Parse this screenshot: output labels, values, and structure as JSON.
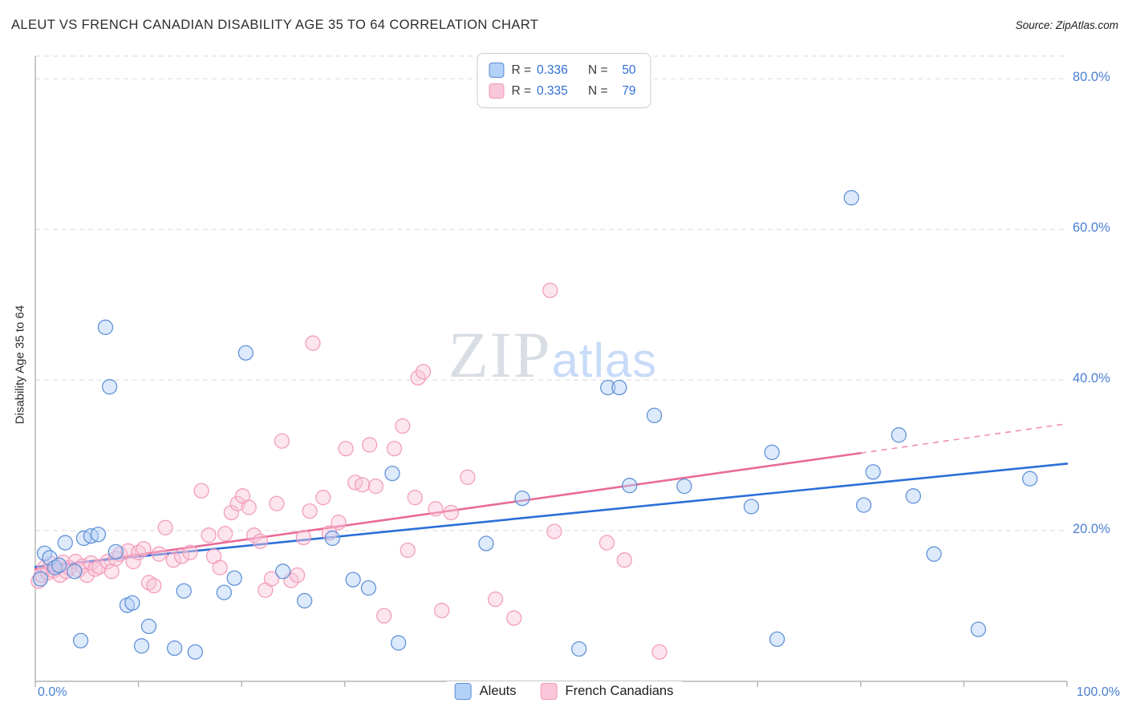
{
  "header": {
    "title": "ALEUT VS FRENCH CANADIAN DISABILITY AGE 35 TO 64 CORRELATION CHART",
    "source": "Source: ZipAtlas.com"
  },
  "watermark": {
    "zip": "ZIP",
    "atlas": "atlas"
  },
  "legend_box": {
    "rows": [
      {
        "r_label": "R =",
        "r_value": "0.336",
        "n_label": "N =",
        "n_value": "50"
      },
      {
        "r_label": "R =",
        "r_value": "0.335",
        "n_label": "N =",
        "n_value": "79"
      }
    ]
  },
  "axes": {
    "y_label": "Disability Age 35 to 64",
    "y_ticks": [
      "80.0%",
      "60.0%",
      "40.0%",
      "20.0%"
    ],
    "x_start": "0.0%",
    "x_end": "100.0%",
    "tick_color": "#4a7fd1"
  },
  "bottom_legend": [
    {
      "label": "Aleuts"
    },
    {
      "label": "French Canadians"
    }
  ],
  "colors": {
    "accent_blue": "#2f6fd4",
    "gridline": "#d9d9d9",
    "axis": "#b3b3b3"
  },
  "chart_data": {
    "type": "scatter",
    "title": "ALEUT VS FRENCH CANADIAN DISABILITY AGE 35 TO 64 CORRELATION CHART",
    "xlabel": "",
    "ylabel": "Disability Age 35 to 64",
    "xlim": [
      0,
      100
    ],
    "ylim": [
      0,
      83
    ],
    "grid_y_values": [
      20,
      40,
      60,
      80
    ],
    "x_tick_step": 10,
    "legend_position": "bottom-center",
    "series": [
      {
        "name": "Aleuts",
        "r": 0.336,
        "n": 50,
        "fill": "#b3d1f7",
        "stroke": "#5b8dd6",
        "trend": {
          "x_start": 0,
          "y_start": 15.2,
          "x_end": 100,
          "y_end": 28.9,
          "color": "#2b6fd9",
          "dashed_extension": null
        },
        "points": [
          [
            0.5,
            13.6
          ],
          [
            0.9,
            17.0
          ],
          [
            1.4,
            16.4
          ],
          [
            1.9,
            15.1
          ],
          [
            2.3,
            15.4
          ],
          [
            2.9,
            18.4
          ],
          [
            3.8,
            14.6
          ],
          [
            4.4,
            5.4
          ],
          [
            4.7,
            19.0
          ],
          [
            5.4,
            19.3
          ],
          [
            6.1,
            19.5
          ],
          [
            6.8,
            47.0
          ],
          [
            7.2,
            39.1
          ],
          [
            7.8,
            17.2
          ],
          [
            8.9,
            10.1
          ],
          [
            9.4,
            10.4
          ],
          [
            10.3,
            4.7
          ],
          [
            11.0,
            7.3
          ],
          [
            13.5,
            4.4
          ],
          [
            14.4,
            12.0
          ],
          [
            15.5,
            3.9
          ],
          [
            18.3,
            11.8
          ],
          [
            19.3,
            13.7
          ],
          [
            20.4,
            43.6
          ],
          [
            24.0,
            14.6
          ],
          [
            26.1,
            10.7
          ],
          [
            28.8,
            19.0
          ],
          [
            30.8,
            13.5
          ],
          [
            32.3,
            12.4
          ],
          [
            34.6,
            27.6
          ],
          [
            35.2,
            5.1
          ],
          [
            43.7,
            18.3
          ],
          [
            47.2,
            24.3
          ],
          [
            52.7,
            4.3
          ],
          [
            55.5,
            39.0
          ],
          [
            56.6,
            39.0
          ],
          [
            57.6,
            26.0
          ],
          [
            60.0,
            35.3
          ],
          [
            62.9,
            25.9
          ],
          [
            69.4,
            23.2
          ],
          [
            71.4,
            30.4
          ],
          [
            71.9,
            5.6
          ],
          [
            79.1,
            64.2
          ],
          [
            80.3,
            23.4
          ],
          [
            81.2,
            27.8
          ],
          [
            83.7,
            32.7
          ],
          [
            85.1,
            24.6
          ],
          [
            87.1,
            16.9
          ],
          [
            91.4,
            6.9
          ],
          [
            96.4,
            26.9
          ]
        ]
      },
      {
        "name": "French Canadians",
        "r": 0.335,
        "n": 79,
        "fill": "#f9c6da",
        "stroke": "#f29ab8",
        "trend": {
          "x_start": 0,
          "y_start": 14.9,
          "x_end": 80,
          "y_end": 30.3,
          "color": "#e96b97",
          "dashed_extension": {
            "x_end": 100,
            "y_end": 34.2
          }
        },
        "points": [
          [
            0.3,
            13.3
          ],
          [
            0.6,
            14.1
          ],
          [
            0.9,
            15.1
          ],
          [
            1.2,
            14.4
          ],
          [
            1.5,
            15.6
          ],
          [
            1.8,
            14.7
          ],
          [
            2.1,
            15.2
          ],
          [
            2.4,
            14.1
          ],
          [
            2.7,
            15.8
          ],
          [
            3.0,
            14.6
          ],
          [
            3.3,
            15.1
          ],
          [
            60.5,
            3.9
          ],
          [
            3.9,
            15.9
          ],
          [
            4.2,
            14.8
          ],
          [
            4.6,
            15.3
          ],
          [
            5.0,
            14.1
          ],
          [
            5.4,
            15.7
          ],
          [
            5.8,
            14.9
          ],
          [
            6.2,
            15.2
          ],
          [
            57.1,
            16.1
          ],
          [
            7.0,
            15.9
          ],
          [
            7.4,
            14.6
          ],
          [
            7.8,
            16.3
          ],
          [
            8.2,
            16.9
          ],
          [
            50.3,
            19.9
          ],
          [
            9.0,
            17.3
          ],
          [
            9.5,
            15.9
          ],
          [
            10.0,
            17.1
          ],
          [
            10.5,
            17.6
          ],
          [
            11.0,
            13.1
          ],
          [
            11.5,
            12.7
          ],
          [
            12.0,
            16.9
          ],
          [
            12.6,
            20.4
          ],
          [
            13.4,
            16.1
          ],
          [
            14.2,
            16.6
          ],
          [
            15.0,
            17.1
          ],
          [
            16.1,
            25.3
          ],
          [
            16.8,
            19.4
          ],
          [
            17.3,
            16.6
          ],
          [
            17.9,
            15.1
          ],
          [
            18.4,
            19.6
          ],
          [
            19.0,
            22.4
          ],
          [
            19.6,
            23.6
          ],
          [
            20.1,
            24.6
          ],
          [
            20.7,
            23.1
          ],
          [
            21.2,
            19.4
          ],
          [
            21.8,
            18.6
          ],
          [
            22.3,
            12.1
          ],
          [
            22.9,
            13.6
          ],
          [
            23.4,
            23.6
          ],
          [
            23.9,
            31.9
          ],
          [
            24.8,
            13.4
          ],
          [
            25.4,
            14.1
          ],
          [
            26.0,
            19.1
          ],
          [
            26.6,
            22.6
          ],
          [
            26.9,
            44.9
          ],
          [
            27.9,
            24.4
          ],
          [
            28.5,
            19.7
          ],
          [
            29.4,
            21.1
          ],
          [
            30.1,
            30.9
          ],
          [
            31.0,
            26.4
          ],
          [
            31.7,
            26.1
          ],
          [
            32.4,
            31.4
          ],
          [
            33.0,
            25.9
          ],
          [
            33.8,
            8.7
          ],
          [
            34.8,
            30.9
          ],
          [
            35.6,
            33.9
          ],
          [
            36.1,
            17.4
          ],
          [
            36.8,
            24.4
          ],
          [
            37.1,
            40.3
          ],
          [
            37.6,
            41.1
          ],
          [
            38.8,
            22.9
          ],
          [
            39.4,
            9.4
          ],
          [
            40.3,
            22.4
          ],
          [
            41.9,
            27.1
          ],
          [
            44.6,
            10.9
          ],
          [
            46.4,
            8.4
          ],
          [
            49.9,
            51.9
          ],
          [
            55.4,
            18.4
          ]
        ]
      }
    ]
  }
}
